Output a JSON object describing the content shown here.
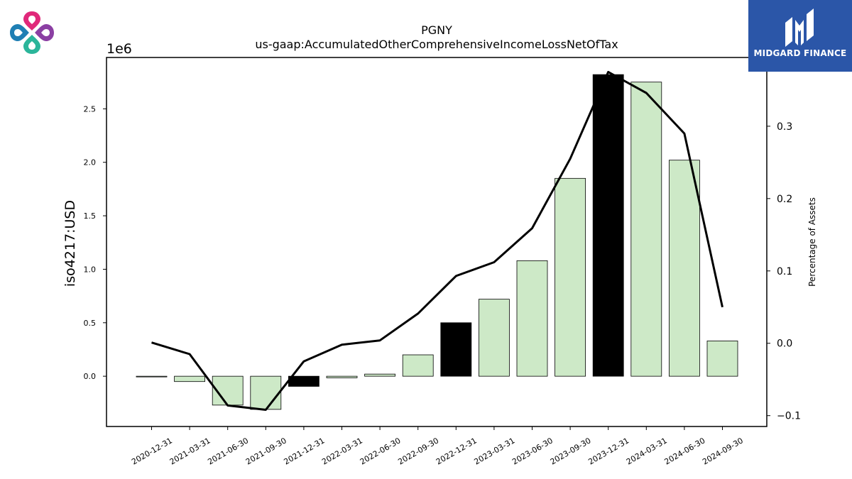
{
  "brand": {
    "name": "MIDGARD FINANCE"
  },
  "chart_data": {
    "type": "bar",
    "title": "PGNY",
    "subtitle": "us-gaap:AccumulatedOtherComprehensiveIncomeLossNetOfTax",
    "ylabel": "iso4217:USD",
    "y_offset_label": "1e6",
    "y2label": "Percentage of Assets",
    "categories": [
      "2020-12-31",
      "2021-03-31",
      "2021-06-30",
      "2021-09-30",
      "2021-12-31",
      "2022-03-31",
      "2022-06-30",
      "2022-09-30",
      "2022-12-31",
      "2023-03-31",
      "2023-06-30",
      "2023-09-30",
      "2023-12-31",
      "2024-03-31",
      "2024-06-30",
      "2024-09-30"
    ],
    "values": [
      -5000,
      -50000,
      -270000,
      -310000,
      -95000,
      -15000,
      20000,
      200000,
      500000,
      720000,
      1080000,
      1850000,
      2820000,
      2750000,
      2020000,
      330000
    ],
    "highlight": [
      false,
      false,
      false,
      false,
      true,
      false,
      false,
      false,
      true,
      false,
      false,
      false,
      true,
      false,
      false,
      false
    ],
    "line_values": [
      0.001,
      -0.015,
      -0.086,
      -0.092,
      -0.025,
      -0.002,
      0.004,
      0.041,
      0.093,
      0.112,
      0.159,
      0.255,
      0.375,
      0.346,
      0.29,
      0.05
    ],
    "ylim": [
      -470000,
      2980000
    ],
    "y2lim": [
      -0.115,
      0.395
    ],
    "yticks": [
      0,
      500000,
      1000000,
      1500000,
      2000000,
      2500000
    ],
    "ytick_labels": [
      "0.0",
      "0.5",
      "1.0",
      "1.5",
      "2.0",
      "2.5"
    ],
    "y2ticks": [
      -0.1,
      0.0,
      0.1,
      0.2,
      0.3
    ],
    "y2tick_labels": [
      "−0.1",
      "0.0",
      "0.1",
      "0.2",
      "0.3"
    ],
    "colors": {
      "bar": "#cde9c7",
      "highlight": "#000000",
      "line": "#000000",
      "edge": "#000000"
    },
    "grid": false
  }
}
